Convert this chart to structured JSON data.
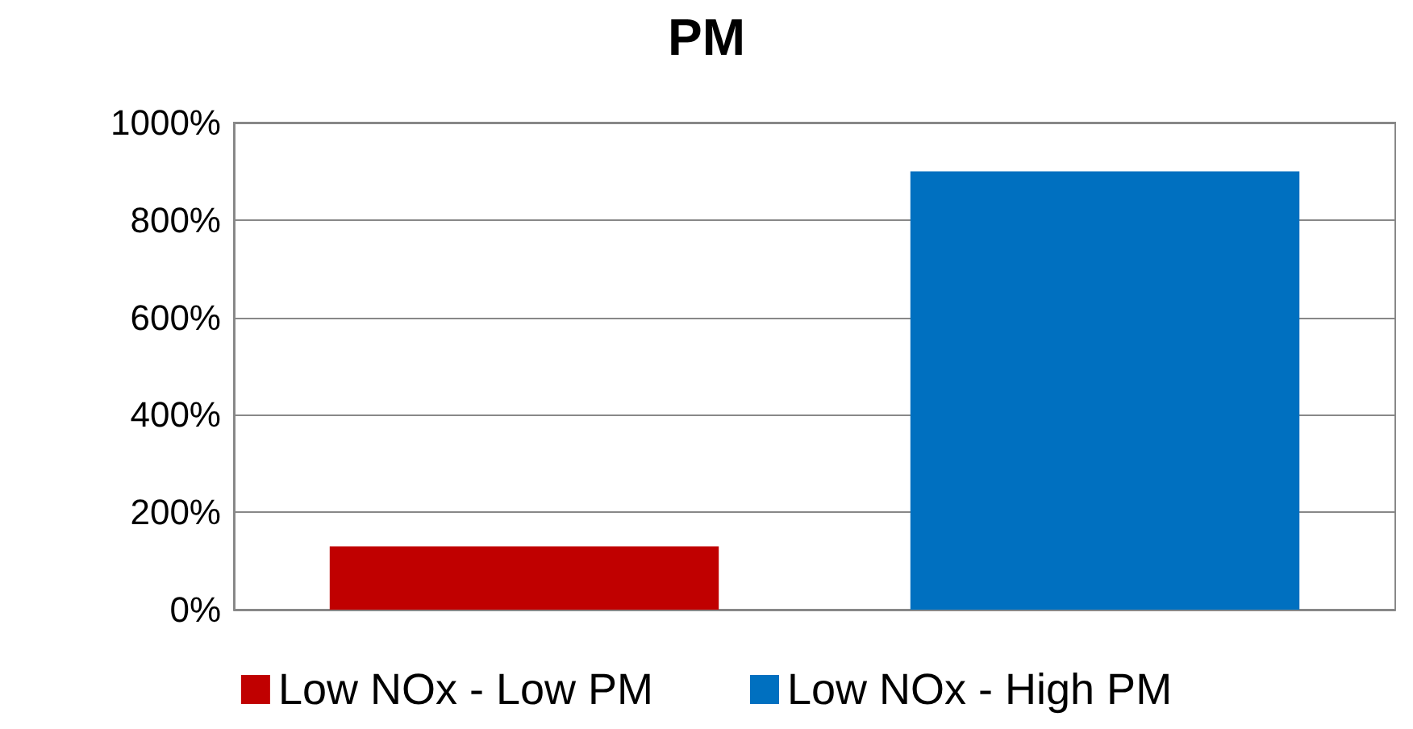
{
  "chart_data": {
    "type": "bar",
    "title": "PM",
    "categories": [
      null,
      null
    ],
    "series": [
      {
        "name": "Low NOx - Low PM",
        "color": "#c00000",
        "values": [
          130,
          null
        ]
      },
      {
        "name": "Low NOx - High PM",
        "color": "#0070c0",
        "values": [
          null,
          900
        ]
      }
    ],
    "ylim": [
      0,
      1000
    ],
    "yticks": [
      {
        "value": 0,
        "label": "0%"
      },
      {
        "value": 200,
        "label": "200%"
      },
      {
        "value": 400,
        "label": "400%"
      },
      {
        "value": 600,
        "label": "600%"
      },
      {
        "value": 800,
        "label": "800%"
      },
      {
        "value": 1000,
        "label": "1000%"
      }
    ],
    "grid": "y",
    "legend": "bottom"
  }
}
